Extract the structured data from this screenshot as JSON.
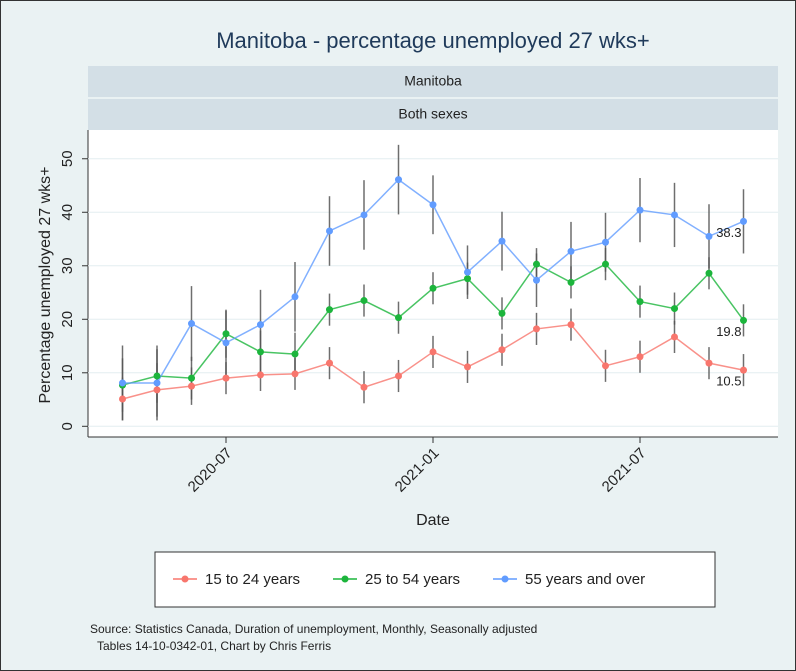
{
  "chart_data": {
    "type": "line",
    "title": "Manitoba  - percentage unemployed 27 wks+",
    "strips": [
      "Manitoba",
      "Both sexes"
    ],
    "xlabel": "Date",
    "ylabel": "Percentage unemployed 27 wks+",
    "x": [
      "2020-04",
      "2020-05",
      "2020-06",
      "2020-07",
      "2020-08",
      "2020-09",
      "2020-10",
      "2020-11",
      "2020-12",
      "2021-01",
      "2021-02",
      "2021-03",
      "2021-04",
      "2021-05",
      "2021-06",
      "2021-07",
      "2021-08",
      "2021-09",
      "2021-10"
    ],
    "xlim": [
      "2020-03",
      "2021-11"
    ],
    "xticks": [
      "2020-07",
      "2021-01",
      "2021-07"
    ],
    "ylim": [
      -2,
      55
    ],
    "yticks": [
      0,
      10,
      20,
      30,
      40,
      50
    ],
    "grid": true,
    "series": [
      {
        "name": "15 to 24 years",
        "color": "#f8766d",
        "values": [
          5.1,
          6.8,
          7.5,
          9.0,
          9.6,
          9.8,
          11.8,
          7.3,
          9.4,
          13.9,
          11.1,
          14.3,
          18.2,
          19.0,
          11.3,
          13.0,
          16.7,
          11.8,
          10.5
        ],
        "errors": [
          4,
          5,
          3.5,
          3,
          3,
          3,
          3,
          3,
          3,
          3,
          3,
          3,
          3,
          3,
          3,
          3,
          3,
          3,
          3
        ]
      },
      {
        "name": "25 to 54 years",
        "color": "#1cb53c",
        "values": [
          7.7,
          9.4,
          9.0,
          17.3,
          13.9,
          13.5,
          21.8,
          23.5,
          20.3,
          25.8,
          27.6,
          21.1,
          30.3,
          26.9,
          30.3,
          23.3,
          22.0,
          28.6,
          19.8
        ],
        "errors": [
          5,
          5,
          4,
          4.5,
          4,
          4,
          3,
          3,
          3,
          3,
          3,
          3,
          3,
          3,
          3,
          3,
          3,
          3,
          3
        ]
      },
      {
        "name": "55 years and over",
        "color": "#619cff",
        "values": [
          8.1,
          8.1,
          19.2,
          15.6,
          19.0,
          24.2,
          36.5,
          39.5,
          46.1,
          41.4,
          28.8,
          34.6,
          27.3,
          32.7,
          34.4,
          40.4,
          39.5,
          35.5,
          38.3
        ],
        "errors": [
          7,
          7,
          7,
          6,
          6.5,
          6.5,
          6.5,
          6.5,
          6.5,
          5.5,
          5,
          5.5,
          5,
          5.5,
          5.5,
          6,
          6,
          6,
          6
        ]
      }
    ],
    "source": [
      "Source: Statistics Canada, Duration of unemployment, Monthly, Seasonally adjusted",
      "Tables 14-10-0342-01, Chart by Chris Ferris"
    ]
  }
}
